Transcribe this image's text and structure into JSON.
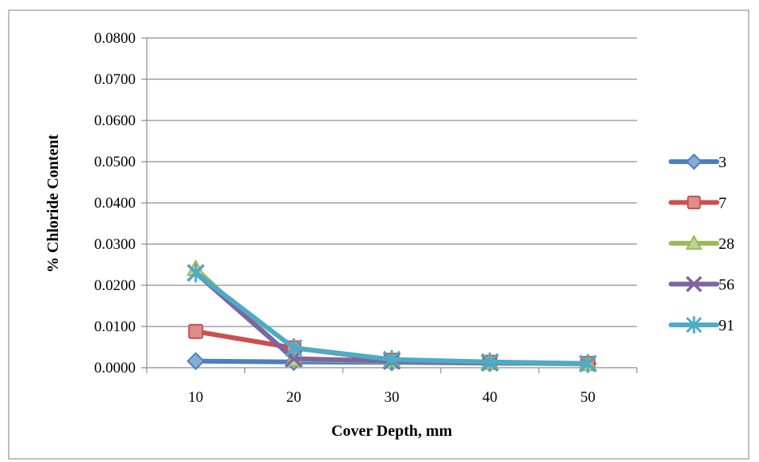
{
  "chart_data": {
    "type": "line",
    "title": "",
    "xlabel": "Cover Depth, mm",
    "ylabel": "% Chloride Content",
    "categories": [
      "10",
      "20",
      "30",
      "40",
      "50"
    ],
    "ylim": [
      0,
      0.08
    ],
    "yticks": [
      "0.0800",
      "0.0700",
      "0.0600",
      "0.0500",
      "0.0400",
      "0.0300",
      "0.0200",
      "0.0100",
      "0.0000"
    ],
    "grid": true,
    "legend_position": "right",
    "series": [
      {
        "name": "3",
        "color": "#4a7fc1",
        "marker": "diamond",
        "values": [
          0.0016,
          0.0014,
          0.0013,
          0.0011,
          0.001
        ]
      },
      {
        "name": "7",
        "color": "#c9504c",
        "marker": "square",
        "values": [
          0.0088,
          0.0048,
          0.0018,
          0.0013,
          0.001
        ]
      },
      {
        "name": "28",
        "color": "#9bbb59",
        "marker": "triangle",
        "values": [
          0.024,
          0.002,
          0.0015,
          0.0012,
          0.0009
        ]
      },
      {
        "name": "56",
        "color": "#8064a2",
        "marker": "x",
        "values": [
          0.023,
          0.0022,
          0.0016,
          0.0012,
          0.001
        ]
      },
      {
        "name": "91",
        "color": "#4bacc6",
        "marker": "star",
        "values": [
          0.023,
          0.0048,
          0.002,
          0.0014,
          0.001
        ]
      }
    ]
  }
}
